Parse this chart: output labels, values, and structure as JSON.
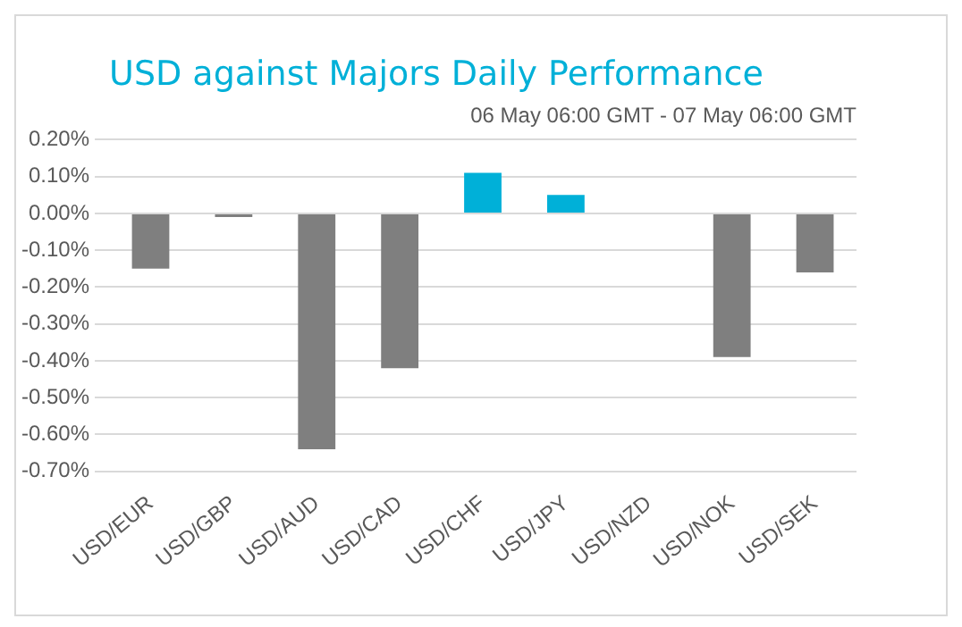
{
  "chart_data": {
    "type": "bar",
    "title": "USD against Majors Daily Performance",
    "subtitle": "06 May 06:00 GMT - 07 May 06:00 GMT",
    "categories": [
      "USD/EUR",
      "USD/GBP",
      "USD/AUD",
      "USD/CAD",
      "USD/CHF",
      "USD/JPY",
      "USD/NZD",
      "USD/NOK",
      "USD/SEK"
    ],
    "values": [
      -0.15,
      -0.01,
      -0.64,
      -0.42,
      0.11,
      0.05,
      0.0,
      -0.39,
      -0.16
    ],
    "colors": [
      "#7f7f7f",
      "#7f7f7f",
      "#7f7f7f",
      "#7f7f7f",
      "#00b0d8",
      "#00b0d8",
      "#7f7f7f",
      "#7f7f7f",
      "#7f7f7f"
    ],
    "ylim": [
      -0.7,
      0.2
    ],
    "yticks": [
      {
        "value": 0.2,
        "label": "0.20%"
      },
      {
        "value": 0.1,
        "label": "0.10%"
      },
      {
        "value": 0,
        "label": "0.00%"
      },
      {
        "value": -0.1,
        "label": "-0.10%"
      },
      {
        "value": -0.2,
        "label": "-0.20%"
      },
      {
        "value": -0.3,
        "label": "-0.30%"
      },
      {
        "value": -0.4,
        "label": "-0.40%"
      },
      {
        "value": -0.5,
        "label": "-0.50%"
      },
      {
        "value": -0.6,
        "label": "-0.60%"
      },
      {
        "value": -0.7,
        "label": "-0.70%"
      }
    ],
    "grid": "y",
    "legend": false
  }
}
